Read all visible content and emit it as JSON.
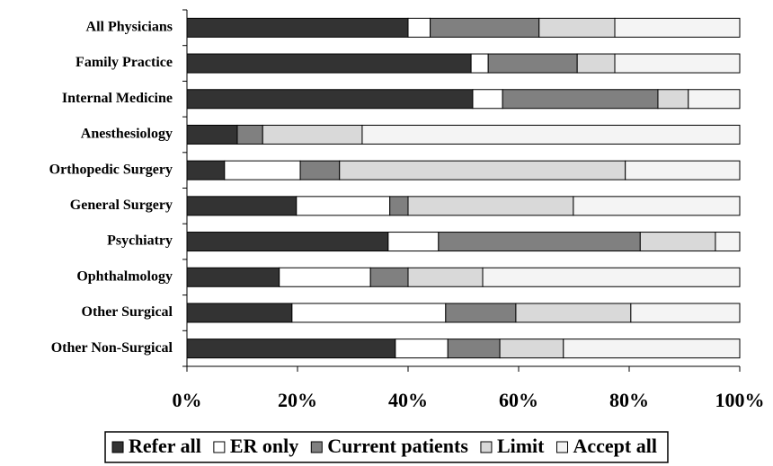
{
  "chart_data": {
    "type": "stacked-bar-horizontal",
    "categories": [
      "All Physicians",
      "Family Practice",
      "Internal Medicine",
      "Anesthesiology",
      "Orthopedic Surgery",
      "General Surgery",
      "Psychiatry",
      "Ophthalmology",
      "Other Surgical",
      "Other Non-Surgical"
    ],
    "series": [
      {
        "name": "Refer all",
        "color": "#333333",
        "values": [
          40,
          51.4,
          51.7,
          9.1,
          6.8,
          19.8,
          36.4,
          16.7,
          19.0,
          37.7
        ]
      },
      {
        "name": "ER only",
        "color": "#ffffff",
        "values": [
          4,
          3.1,
          5.4,
          0,
          13.7,
          16.9,
          9.1,
          16.5,
          27.8,
          9.5
        ]
      },
      {
        "name": "Current patients",
        "color": "#808080",
        "values": [
          19.7,
          16.1,
          28.1,
          4.6,
          7.1,
          3.3,
          36.5,
          6.8,
          12.7,
          9.4
        ]
      },
      {
        "name": "Limit",
        "color": "#d9d9d9",
        "values": [
          13.7,
          6.8,
          5.5,
          18.0,
          51.7,
          29.9,
          13.6,
          13.5,
          20.8,
          11.5
        ]
      },
      {
        "name": "Accept all",
        "color": "#f4f4f4",
        "values": [
          22.6,
          22.6,
          9.3,
          68.3,
          20.7,
          30.1,
          4.4,
          46.5,
          19.7,
          31.9
        ]
      }
    ],
    "xlim": [
      0,
      100
    ],
    "xticks": [
      {
        "value": 0,
        "label": "0%"
      },
      {
        "value": 20,
        "label": "20%"
      },
      {
        "value": 40,
        "label": "40%"
      },
      {
        "value": 60,
        "label": "60%"
      },
      {
        "value": 80,
        "label": "80%"
      },
      {
        "value": 100,
        "label": "100%"
      }
    ],
    "legend": "bottom"
  }
}
